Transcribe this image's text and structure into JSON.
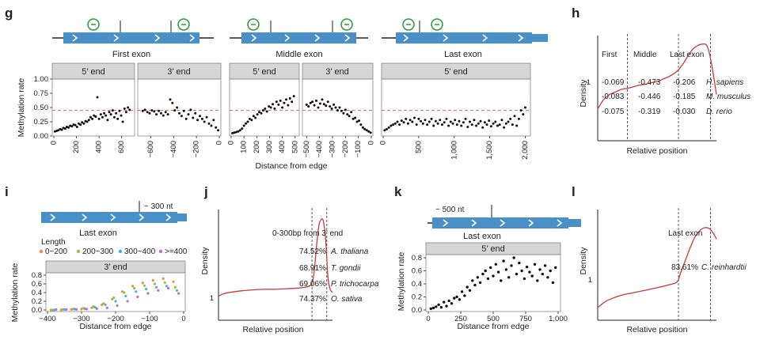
{
  "colors": {
    "gene": "#4a90c8",
    "gene_dark": "#2f6fa8",
    "axis": "#222222",
    "point": "#111111",
    "threshold": "#e06060",
    "density": "#c83a3a",
    "facet_bg": "#d6d6d6",
    "circle": "#2a9a3a",
    "len_0_200": "#f08a4b",
    "len_200_300": "#8cc63f",
    "len_300_400": "#4ab0d8",
    "len_400_plus": "#c06ad8"
  },
  "panel_letters": {
    "g": "g",
    "h": "h",
    "i": "i",
    "j": "j",
    "k": "k",
    "l": "l"
  },
  "panel_g": {
    "genes": [
      {
        "label": "First exon"
      },
      {
        "label": "Middle exon"
      },
      {
        "label": "Last exon"
      }
    ],
    "ylabel": "Methylation rate",
    "xlabel": "Distance from edge",
    "yticks": [
      "0.00",
      "0.25",
      "0.50",
      "0.75",
      "1.00"
    ],
    "facets": [
      {
        "title": "5’ end",
        "xticks": [
          "0",
          "200",
          "400",
          "600"
        ]
      },
      {
        "title": "3’ end",
        "xticks": [
          "−600",
          "−400",
          "−200",
          "0"
        ]
      },
      {
        "title": "5’ end",
        "xticks": [
          "0",
          "100",
          "200",
          "300",
          "400",
          "500"
        ]
      },
      {
        "title": "3’ end",
        "xticks": [
          "−500",
          "−400",
          "−300",
          "−200",
          "−100",
          "0"
        ]
      },
      {
        "title": "5’ end",
        "xticks": [
          "0",
          "500",
          "1,000",
          "1,500",
          "2,000"
        ]
      }
    ]
  },
  "panel_h": {
    "regions": [
      "First",
      "Middle",
      "Last exon"
    ],
    "ylabel": "Density",
    "xlabel": "Relative position",
    "ytick": "1",
    "rows": [
      {
        "first": "-0.069",
        "middle": "-0.473",
        "last": "-0.206",
        "species": "H. sapiens"
      },
      {
        "first": "-0.083",
        "middle": "-0.446",
        "last": "-0.185",
        "species": "M. musculus"
      },
      {
        "first": "-0.075",
        "middle": "-0.319",
        "last": "-0.030",
        "species": "D. rerio"
      }
    ]
  },
  "panel_i": {
    "gene_label": "Last exon",
    "callout": "~ 300 nt",
    "legend_title": "Length",
    "legend": [
      "0~200",
      "200~300",
      "300~400",
      ">=400"
    ],
    "facet": "3’ end",
    "ylabel": "Methylation rate",
    "xlabel": "Distance from edge",
    "yticks": [
      "0.0",
      "0.2",
      "0.4",
      "0.6",
      "0.8"
    ],
    "xticks": [
      "−400",
      "−300",
      "−200",
      "−100",
      "0"
    ]
  },
  "panel_j": {
    "ylabel": "Density",
    "xlabel": "Relative position",
    "ytick": "1",
    "header": "0-300bp from 3’ end",
    "rows": [
      {
        "pct": "74.52%",
        "species": "A. thaliana"
      },
      {
        "pct": "68.91%",
        "species": "T. gondii"
      },
      {
        "pct": "69.06%",
        "species": "P. trichocarpa"
      },
      {
        "pct": "74.37%",
        "species": "O. sativa"
      }
    ]
  },
  "panel_k": {
    "callout": "~ 500 nt",
    "gene_label": "Last exon",
    "facet": "5’ end",
    "ylabel": "Methylation rate",
    "xlabel": "Distance from edge",
    "yticks": [
      "0.0",
      "0.2",
      "0.4",
      "0.6",
      "0.8"
    ],
    "xticks": [
      "0",
      "250",
      "500",
      "750",
      "1,000"
    ]
  },
  "panel_l": {
    "ylabel": "Density",
    "xlabel": "Relative position",
    "ytick": "1",
    "region": "Last exon",
    "pct": "83.61%",
    "species": "C. reinhardtii"
  },
  "chart_data": [
    {
      "panel": "g",
      "type": "scatter",
      "ylim": [
        0,
        1
      ],
      "threshold": 0.45,
      "facets": [
        {
          "title": "5’ end",
          "xlim": [
            0,
            700
          ],
          "x": [
            10,
            25,
            40,
            55,
            70,
            85,
            100,
            115,
            130,
            145,
            160,
            175,
            190,
            205,
            220,
            235,
            250,
            265,
            280,
            295,
            310,
            325,
            340,
            355,
            370,
            385,
            400,
            415,
            430,
            445,
            460,
            475,
            490,
            505,
            520,
            535,
            550,
            565,
            580,
            595,
            610,
            625,
            640,
            655,
            670
          ],
          "y": [
            0.08,
            0.09,
            0.1,
            0.12,
            0.11,
            0.14,
            0.13,
            0.16,
            0.15,
            0.18,
            0.17,
            0.2,
            0.19,
            0.16,
            0.22,
            0.2,
            0.24,
            0.22,
            0.26,
            0.25,
            0.28,
            0.33,
            0.3,
            0.36,
            0.34,
            0.68,
            0.3,
            0.38,
            0.33,
            0.4,
            0.36,
            0.28,
            0.42,
            0.38,
            0.45,
            0.33,
            0.4,
            0.3,
            0.44,
            0.36,
            0.25,
            0.48,
            0.42,
            0.5,
            0.46
          ]
        },
        {
          "title": "3’ end",
          "xlim": [
            -700,
            0
          ],
          "x": [
            -670,
            -650,
            -630,
            -610,
            -590,
            -570,
            -550,
            -530,
            -510,
            -490,
            -470,
            -450,
            -430,
            -410,
            -390,
            -370,
            -350,
            -330,
            -310,
            -290,
            -270,
            -250,
            -230,
            -210,
            -190,
            -170,
            -150,
            -130,
            -110,
            -90,
            -70,
            -50,
            -30,
            -10
          ],
          "y": [
            0.44,
            0.46,
            0.42,
            0.4,
            0.45,
            0.43,
            0.38,
            0.44,
            0.4,
            0.36,
            0.42,
            0.38,
            0.64,
            0.58,
            0.45,
            0.5,
            0.4,
            0.35,
            0.44,
            0.3,
            0.38,
            0.46,
            0.32,
            0.4,
            0.28,
            0.35,
            0.3,
            0.25,
            0.33,
            0.22,
            0.18,
            0.28,
            0.15,
            0.1
          ]
        },
        {
          "title": "5’ end",
          "xlim": [
            0,
            520
          ],
          "x": [
            10,
            25,
            40,
            55,
            70,
            85,
            100,
            115,
            130,
            145,
            160,
            175,
            190,
            205,
            220,
            235,
            250,
            265,
            280,
            295,
            310,
            325,
            340,
            355,
            370,
            385,
            400,
            415,
            430,
            445,
            460,
            475,
            490
          ],
          "y": [
            0.05,
            0.06,
            0.07,
            0.08,
            0.1,
            0.13,
            0.18,
            0.22,
            0.25,
            0.3,
            0.28,
            0.35,
            0.32,
            0.38,
            0.42,
            0.4,
            0.45,
            0.48,
            0.43,
            0.52,
            0.5,
            0.56,
            0.48,
            0.6,
            0.55,
            0.62,
            0.5,
            0.58,
            0.64,
            0.54,
            0.66,
            0.6,
            0.7
          ]
        },
        {
          "title": "3’ end",
          "xlim": [
            -520,
            0
          ],
          "x": [
            -500,
            -485,
            -470,
            -455,
            -440,
            -425,
            -410,
            -395,
            -380,
            -365,
            -350,
            -335,
            -320,
            -305,
            -290,
            -275,
            -260,
            -245,
            -230,
            -215,
            -200,
            -185,
            -170,
            -155,
            -140,
            -125,
            -110,
            -95,
            -80,
            -65,
            -50,
            -35,
            -20,
            -5
          ],
          "y": [
            0.55,
            0.52,
            0.58,
            0.6,
            0.54,
            0.62,
            0.5,
            0.57,
            0.64,
            0.56,
            0.53,
            0.6,
            0.52,
            0.48,
            0.55,
            0.5,
            0.45,
            0.5,
            0.44,
            0.4,
            0.46,
            0.38,
            0.35,
            0.42,
            0.3,
            0.32,
            0.25,
            0.27,
            0.2,
            0.15,
            0.12,
            0.1,
            0.08,
            0.06
          ]
        },
        {
          "title": "5’ end",
          "xlim": [
            0,
            2050
          ],
          "x": [
            20,
            50,
            80,
            110,
            140,
            170,
            200,
            230,
            260,
            290,
            320,
            350,
            380,
            410,
            440,
            470,
            500,
            530,
            560,
            590,
            620,
            650,
            680,
            710,
            740,
            770,
            800,
            830,
            860,
            890,
            920,
            950,
            980,
            1010,
            1040,
            1070,
            1100,
            1130,
            1160,
            1190,
            1220,
            1250,
            1280,
            1310,
            1340,
            1370,
            1400,
            1430,
            1460,
            1490,
            1520,
            1550,
            1580,
            1610,
            1640,
            1670,
            1700,
            1730,
            1760,
            1790,
            1820,
            1850,
            1880,
            1910,
            1940,
            1970,
            2000
          ],
          "y": [
            0.1,
            0.12,
            0.15,
            0.18,
            0.2,
            0.22,
            0.25,
            0.2,
            0.27,
            0.24,
            0.3,
            0.22,
            0.28,
            0.25,
            0.32,
            0.2,
            0.3,
            0.26,
            0.22,
            0.28,
            0.2,
            0.25,
            0.3,
            0.18,
            0.26,
            0.22,
            0.28,
            0.2,
            0.24,
            0.3,
            0.18,
            0.25,
            0.22,
            0.28,
            0.2,
            0.26,
            0.18,
            0.24,
            0.3,
            0.16,
            0.25,
            0.2,
            0.28,
            0.18,
            0.22,
            0.26,
            0.15,
            0.24,
            0.2,
            0.27,
            0.17,
            0.22,
            0.25,
            0.18,
            0.2,
            0.28,
            0.15,
            0.22,
            0.25,
            0.3,
            0.2,
            0.35,
            0.18,
            0.3,
            0.45,
            0.38,
            0.5
          ]
        }
      ]
    },
    {
      "panel": "h",
      "type": "line",
      "xlim": [
        0,
        1
      ],
      "ylim": [
        0,
        2
      ],
      "region_boundaries": [
        0.25,
        0.68,
        0.95
      ],
      "x": [
        0,
        0.05,
        0.1,
        0.15,
        0.2,
        0.25,
        0.3,
        0.35,
        0.4,
        0.45,
        0.5,
        0.55,
        0.6,
        0.65,
        0.68,
        0.72,
        0.76,
        0.8,
        0.84,
        0.88,
        0.92,
        0.95,
        0.98,
        1.0
      ],
      "y": [
        0.62,
        0.8,
        0.9,
        0.95,
        1.0,
        1.02,
        1.05,
        1.08,
        1.1,
        1.13,
        1.15,
        1.2,
        1.25,
        1.32,
        1.38,
        1.5,
        1.65,
        1.78,
        1.85,
        1.88,
        1.85,
        1.6,
        1.2,
        0.9
      ]
    },
    {
      "panel": "i",
      "type": "scatter",
      "xlim": [
        -400,
        0
      ],
      "ylim": [
        0,
        0.8
      ],
      "series": [
        {
          "name": "0~200",
          "x": [
            -390,
            -360,
            -330,
            -300,
            -270,
            -240,
            -210,
            -180,
            -150,
            -120,
            -90,
            -60,
            -30
          ],
          "y": [
            0.0,
            0.0,
            0.01,
            0.02,
            0.05,
            0.12,
            0.25,
            0.42,
            0.55,
            0.62,
            0.68,
            0.72,
            0.65
          ]
        },
        {
          "name": "200~300",
          "x": [
            -385,
            -355,
            -325,
            -295,
            -265,
            -235,
            -205,
            -175,
            -145,
            -115,
            -85,
            -55,
            -25
          ],
          "y": [
            0.0,
            0.01,
            0.02,
            0.04,
            0.08,
            0.15,
            0.28,
            0.4,
            0.5,
            0.56,
            0.6,
            0.63,
            0.52
          ]
        },
        {
          "name": "300~400",
          "x": [
            -380,
            -350,
            -320,
            -290,
            -260,
            -230,
            -200,
            -170,
            -140,
            -110,
            -80,
            -50,
            -20
          ],
          "y": [
            0.0,
            0.01,
            0.02,
            0.03,
            0.06,
            0.12,
            0.2,
            0.32,
            0.42,
            0.48,
            0.52,
            0.55,
            0.45
          ]
        },
        {
          "name": ">=400",
          "x": [
            -375,
            -345,
            -315,
            -285,
            -255,
            -225,
            -195,
            -165,
            -135,
            -105,
            -75,
            -45,
            -15
          ],
          "y": [
            0.01,
            0.01,
            0.01,
            0.02,
            0.03,
            0.05,
            0.1,
            0.2,
            0.3,
            0.38,
            0.45,
            0.5,
            0.38
          ]
        }
      ]
    },
    {
      "panel": "j",
      "type": "line",
      "xlim": [
        0,
        1
      ],
      "ylim": [
        0,
        3.5
      ],
      "region_boundaries": [
        0.82,
        0.95
      ],
      "x": [
        0,
        0.05,
        0.1,
        0.2,
        0.3,
        0.4,
        0.5,
        0.6,
        0.7,
        0.78,
        0.82,
        0.84,
        0.86,
        0.88,
        0.9,
        0.92,
        0.94,
        0.96,
        0.98,
        1.0
      ],
      "y": [
        0.78,
        0.86,
        0.9,
        0.95,
        0.98,
        1.0,
        1.0,
        1.02,
        1.04,
        1.08,
        1.2,
        1.6,
        2.4,
        3.05,
        3.25,
        3.2,
        2.6,
        1.4,
        1.0,
        0.9
      ]
    },
    {
      "panel": "k",
      "type": "scatter",
      "xlim": [
        0,
        1000
      ],
      "ylim": [
        0,
        0.8
      ],
      "x": [
        20,
        40,
        60,
        80,
        100,
        120,
        140,
        160,
        180,
        200,
        220,
        240,
        260,
        280,
        300,
        320,
        340,
        360,
        380,
        400,
        420,
        440,
        460,
        480,
        500,
        520,
        540,
        560,
        580,
        600,
        620,
        640,
        660,
        680,
        700,
        720,
        740,
        760,
        780,
        800,
        820,
        840,
        860,
        880,
        900,
        920,
        940,
        960,
        980
      ],
      "y": [
        0.02,
        0.03,
        0.05,
        0.08,
        0.04,
        0.12,
        0.06,
        0.14,
        0.1,
        0.18,
        0.2,
        0.16,
        0.28,
        0.22,
        0.35,
        0.3,
        0.45,
        0.38,
        0.5,
        0.42,
        0.55,
        0.6,
        0.48,
        0.65,
        0.52,
        0.7,
        0.58,
        0.45,
        0.75,
        0.62,
        0.5,
        0.68,
        0.8,
        0.55,
        0.72,
        0.6,
        0.48,
        0.66,
        0.58,
        0.52,
        0.7,
        0.45,
        0.62,
        0.55,
        0.68,
        0.5,
        0.6,
        0.42,
        0.65
      ]
    },
    {
      "panel": "l",
      "type": "line",
      "xlim": [
        0,
        1
      ],
      "ylim": [
        0,
        2.6
      ],
      "region_boundaries": [
        0.68,
        0.95
      ],
      "x": [
        0,
        0.05,
        0.1,
        0.2,
        0.3,
        0.4,
        0.5,
        0.6,
        0.66,
        0.68,
        0.7,
        0.74,
        0.78,
        0.82,
        0.86,
        0.9,
        0.94,
        0.97,
        1.0
      ],
      "y": [
        0.3,
        0.42,
        0.5,
        0.6,
        0.66,
        0.72,
        0.78,
        0.85,
        0.9,
        0.98,
        1.15,
        1.45,
        1.75,
        2.0,
        2.15,
        2.22,
        2.2,
        2.1,
        1.95
      ]
    }
  ]
}
